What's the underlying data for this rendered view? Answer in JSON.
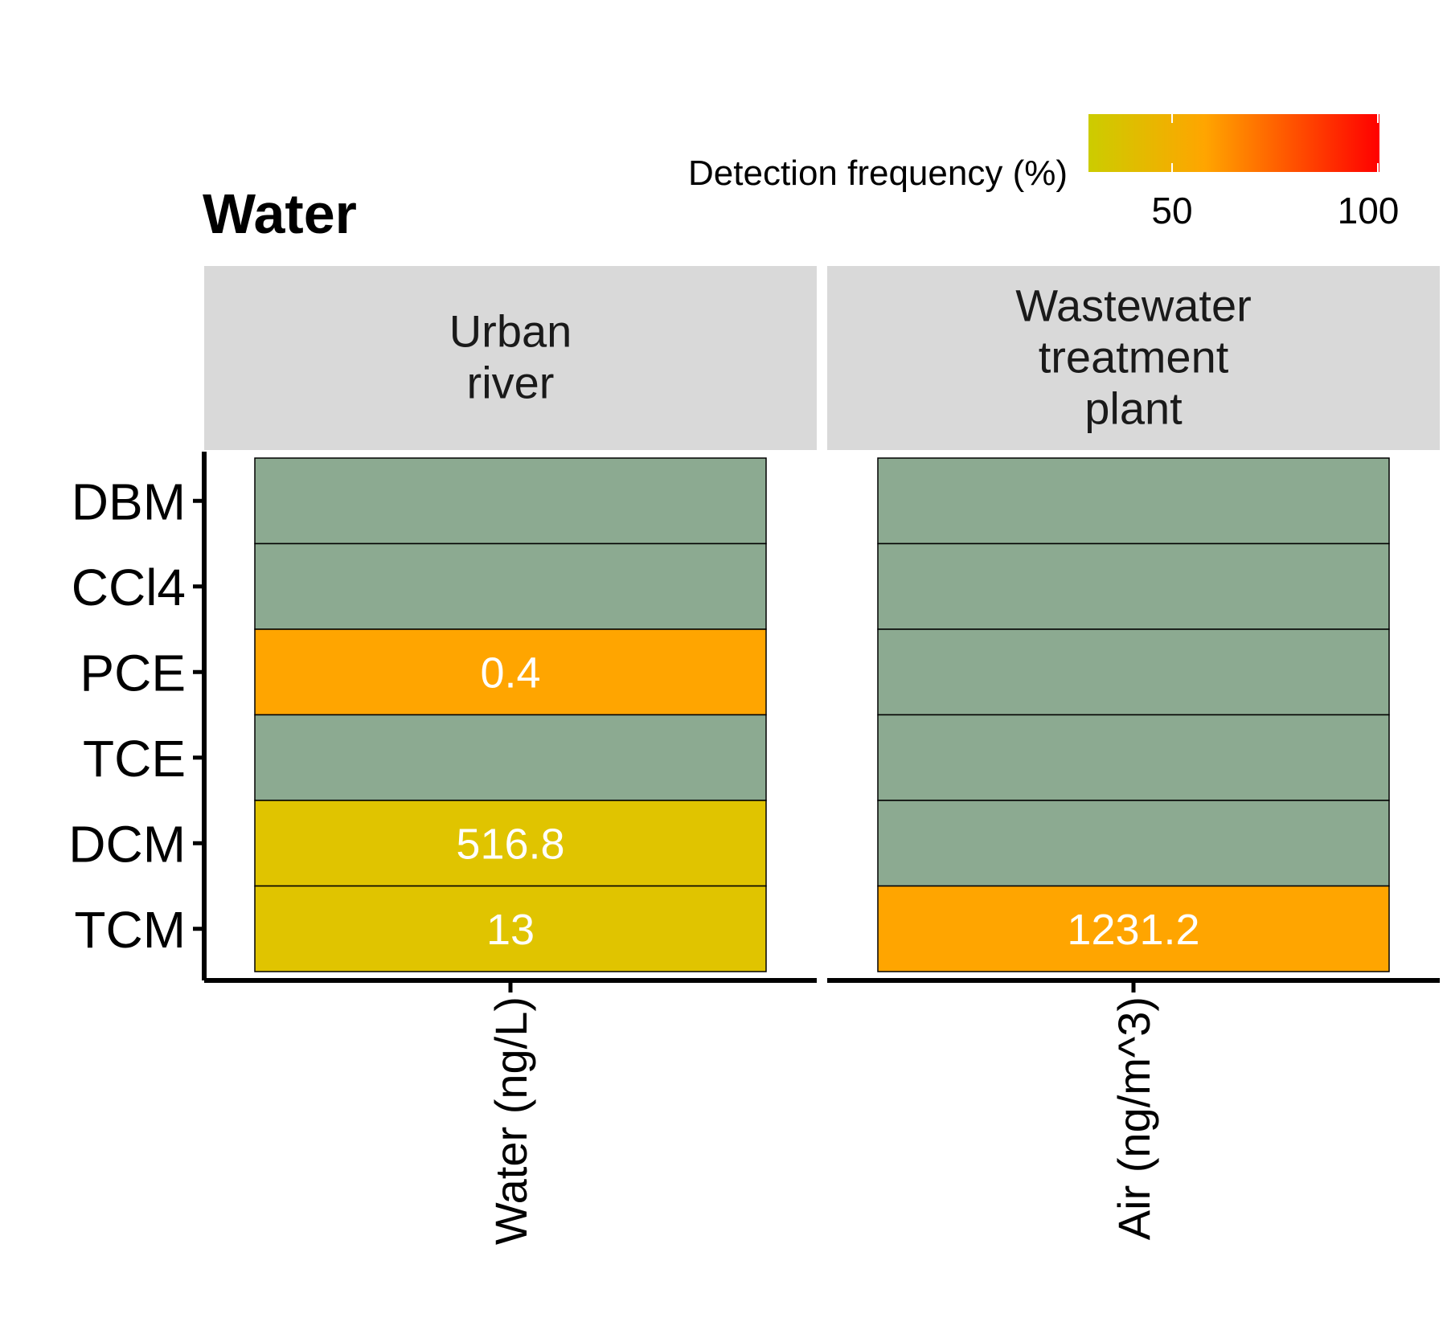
{
  "chart_data": {
    "type": "heatmap",
    "title": "Water",
    "legend": {
      "title": "Detection frequency (%)",
      "ticks": [
        "50",
        "100"
      ],
      "range": [
        30,
        100
      ],
      "colors": [
        "#cccc00",
        "#ffa500",
        "#ff0000"
      ],
      "placement": "top-right"
    },
    "rows": [
      "DBM",
      "CCl4",
      "PCE",
      "TCE",
      "DCM",
      "TCM"
    ],
    "not_detected_color": "#8caa91",
    "panels": [
      {
        "strip": [
          "Urban",
          "river"
        ],
        "x_label": "Water (ng/L)",
        "cells": [
          {
            "row": "DBM",
            "value": null,
            "label": "",
            "color": "#8caa91"
          },
          {
            "row": "CCl4",
            "value": null,
            "label": "",
            "color": "#8caa91"
          },
          {
            "row": "PCE",
            "value": 0.4,
            "label": "0.4",
            "color": "#ffa500"
          },
          {
            "row": "TCE",
            "value": null,
            "label": "",
            "color": "#8caa91"
          },
          {
            "row": "DCM",
            "value": 516.8,
            "label": "516.8",
            "color": "#e0c400"
          },
          {
            "row": "TCM",
            "value": 13,
            "label": "13",
            "color": "#e0c400"
          }
        ]
      },
      {
        "strip": [
          "Wastewater",
          "treatment",
          "plant"
        ],
        "x_label": "Air (ng/m^3)",
        "cells": [
          {
            "row": "DBM",
            "value": null,
            "label": "",
            "color": "#8caa91"
          },
          {
            "row": "CCl4",
            "value": null,
            "label": "",
            "color": "#8caa91"
          },
          {
            "row": "PCE",
            "value": null,
            "label": "",
            "color": "#8caa91"
          },
          {
            "row": "TCE",
            "value": null,
            "label": "",
            "color": "#8caa91"
          },
          {
            "row": "DCM",
            "value": null,
            "label": "",
            "color": "#8caa91"
          },
          {
            "row": "TCM",
            "value": 1231.2,
            "label": "1231.2",
            "color": "#ffa500"
          }
        ]
      }
    ]
  }
}
